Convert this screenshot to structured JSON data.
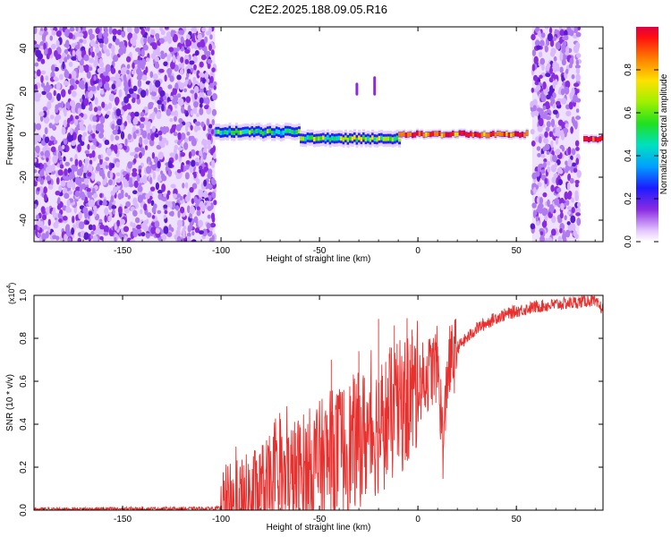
{
  "title": "C2E2.2025.188.09.05.R16",
  "chart_data": [
    {
      "type": "heatmap",
      "xlabel": "Height of straight line (km)",
      "ylabel": "Frequency (Hz)",
      "xlim": [
        -195,
        94
      ],
      "ylim": [
        -50,
        50
      ],
      "xticks": [
        "-150",
        "-100",
        "-50",
        "0",
        "50"
      ],
      "yticks": [
        "-40",
        "-20",
        "0",
        "20",
        "40"
      ],
      "colorbar": {
        "label": "Normalized spectral amplitude",
        "range": [
          0,
          1
        ],
        "ticks": [
          "0.0",
          "0.2",
          "0.4",
          "0.6",
          "0.8"
        ]
      },
      "regions": [
        {
          "x": [
            -195,
            -103
          ],
          "freq": [
            -50,
            50
          ],
          "amplitude": "noise"
        },
        {
          "x": [
            -103,
            -60
          ],
          "freq_center": 1,
          "amplitude": 0.45
        },
        {
          "x": [
            -60,
            -10
          ],
          "freq_center": -2,
          "amplitude": 0.55
        },
        {
          "x": [
            -10,
            55
          ],
          "freq_center": 0,
          "amplitude": 0.85
        },
        {
          "x": [
            58,
            82
          ],
          "freq": [
            -50,
            50
          ],
          "amplitude": "noise"
        },
        {
          "x": [
            84,
            94
          ],
          "freq_center": -2,
          "amplitude": 0.95
        }
      ],
      "features": [
        {
          "x": -31,
          "freq": [
            18,
            24
          ]
        },
        {
          "x": -22,
          "freq": [
            18,
            27
          ]
        }
      ]
    },
    {
      "type": "line",
      "xlabel": "Height of straight line (km)",
      "ylabel": "SNR (10 * v/v)",
      "y_multiplier": "(x10",
      "y_multiplier_exp": "4",
      "y_multiplier_close": ")",
      "xlim": [
        -195,
        94
      ],
      "ylim": [
        0,
        1.0
      ],
      "xticks": [
        "-150",
        "-100",
        "-50",
        "0",
        "50"
      ],
      "yticks": [
        "0.0",
        "0.2",
        "0.4",
        "0.6",
        "0.8",
        "1.0"
      ],
      "color": "#e8312e",
      "x": [
        -195,
        -150,
        -110,
        -100,
        -90,
        -80,
        -70,
        -60,
        -50,
        -40,
        -30,
        -20,
        -10,
        0,
        10,
        13,
        15,
        20,
        30,
        40,
        50,
        60,
        70,
        80,
        88,
        94
      ],
      "y": [
        0.005,
        0.007,
        0.008,
        0.01,
        0.03,
        0.09,
        0.14,
        0.19,
        0.24,
        0.3,
        0.36,
        0.42,
        0.5,
        0.6,
        0.7,
        0.3,
        0.68,
        0.76,
        0.85,
        0.9,
        0.93,
        0.95,
        0.96,
        0.97,
        0.98,
        0.94
      ],
      "peaks": [
        {
          "x": -20,
          "y": 0.89
        },
        {
          "x": -12,
          "y": 0.86
        },
        {
          "x": -3,
          "y": 0.84
        },
        {
          "x": -30,
          "y": 0.74
        },
        {
          "x": -44,
          "y": 0.7
        }
      ]
    }
  ]
}
